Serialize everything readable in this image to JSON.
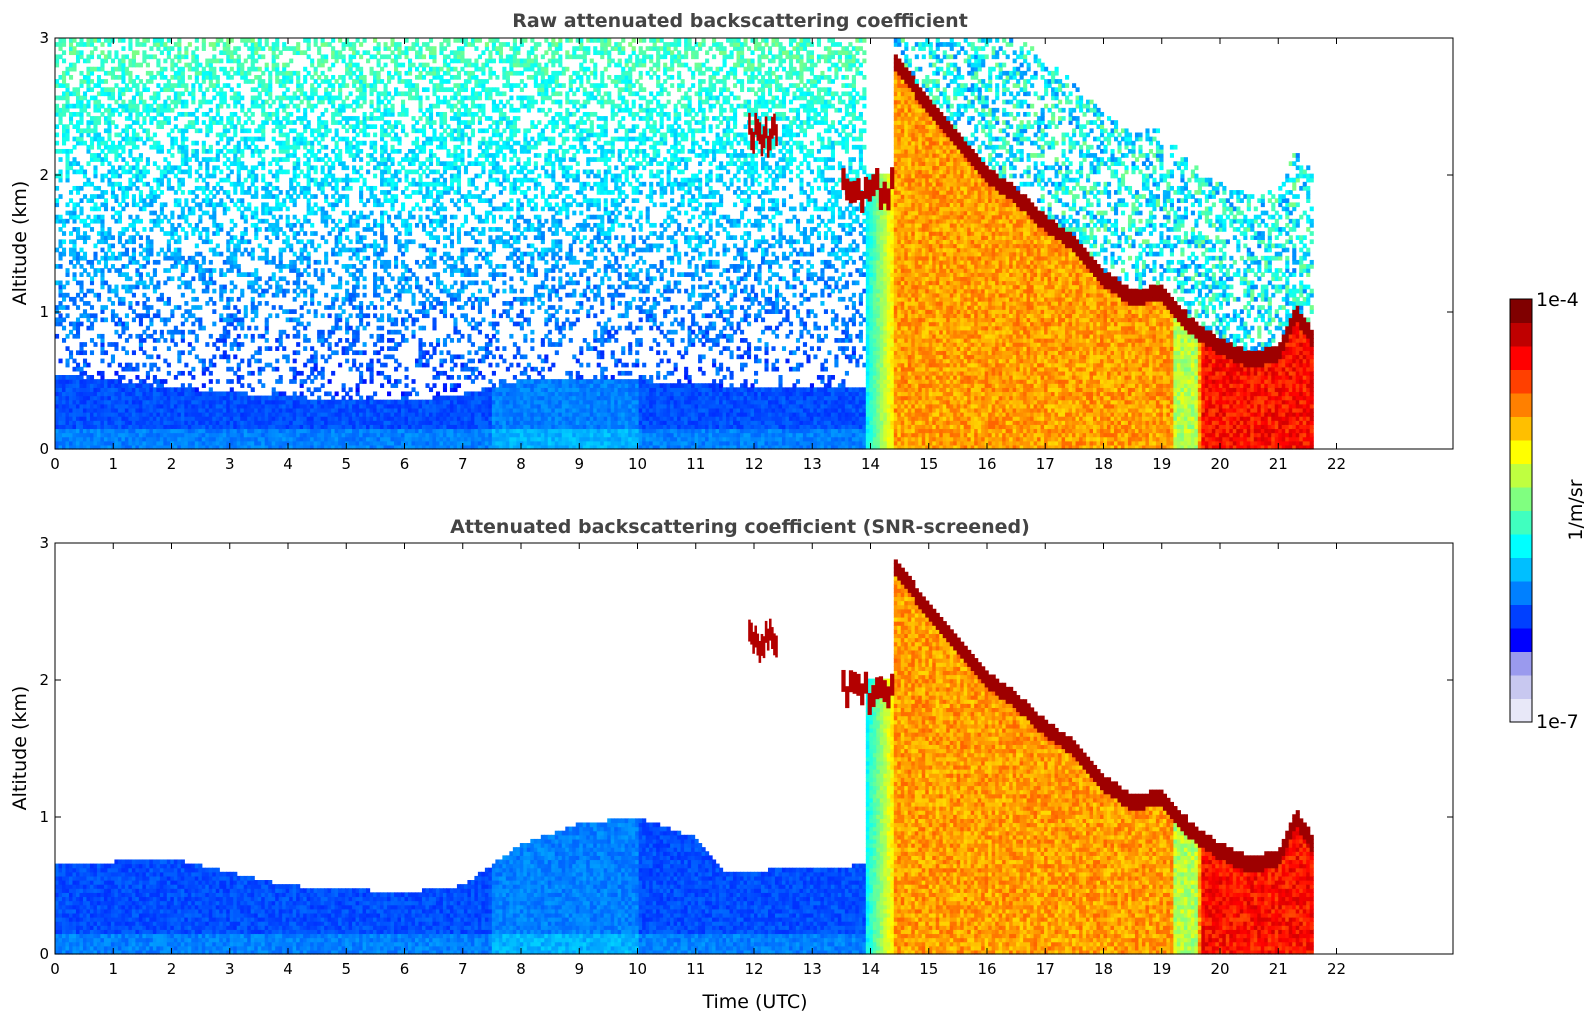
{
  "chart_data": [
    {
      "type": "heatmap",
      "title": "Raw attenuated backscattering coefficient",
      "ylabel": "Altitude (km)",
      "xlabel": "",
      "xlim": [
        0,
        24
      ],
      "ylim": [
        0,
        3
      ],
      "xticks": [
        "0",
        "1",
        "2",
        "3",
        "4",
        "5",
        "6",
        "7",
        "8",
        "9",
        "10",
        "11",
        "12",
        "13",
        "14",
        "15",
        "16",
        "17",
        "18",
        "19",
        "20",
        "21",
        "22"
      ],
      "yticks": [
        "0",
        "1",
        "2",
        "3"
      ],
      "data_end_time": 21.6,
      "screened": false,
      "features": {
        "boundary_layer_top_km": [
          [
            0,
            0.55
          ],
          [
            2,
            0.45
          ],
          [
            4,
            0.38
          ],
          [
            6,
            0.35
          ],
          [
            7,
            0.4
          ],
          [
            8,
            0.5
          ],
          [
            10,
            0.5
          ],
          [
            12,
            0.45
          ],
          [
            13.9,
            0.45
          ]
        ],
        "cloud_top_km": [
          [
            14.4,
            2.85
          ],
          [
            15,
            2.5
          ],
          [
            15.5,
            2.25
          ],
          [
            16,
            2.0
          ],
          [
            16.5,
            1.85
          ],
          [
            17,
            1.65
          ],
          [
            17.5,
            1.5
          ],
          [
            18,
            1.25
          ],
          [
            18.5,
            1.1
          ],
          [
            19,
            1.15
          ],
          [
            19.5,
            0.9
          ],
          [
            20,
            0.75
          ],
          [
            20.5,
            0.65
          ],
          [
            21,
            0.7
          ],
          [
            21.3,
            1.0
          ],
          [
            21.6,
            0.8
          ]
        ],
        "elevated_layers": [
          {
            "time": [
              11.9,
              12.4
            ],
            "altitude_km": [
              2.2,
              2.4
            ]
          },
          {
            "time": [
              13.5,
              14.4
            ],
            "altitude_km": [
              1.8,
              2.0
            ]
          }
        ]
      }
    },
    {
      "type": "heatmap",
      "title": "Attenuated backscattering coefficient (SNR-screened)",
      "ylabel": "Altitude (km)",
      "xlabel": "Time (UTC)",
      "xlim": [
        0,
        24
      ],
      "ylim": [
        0,
        3
      ],
      "xticks": [
        "0",
        "1",
        "2",
        "3",
        "4",
        "5",
        "6",
        "7",
        "8",
        "9",
        "10",
        "11",
        "12",
        "13",
        "14",
        "15",
        "16",
        "17",
        "18",
        "19",
        "20",
        "21",
        "22"
      ],
      "yticks": [
        "0",
        "1",
        "2",
        "3"
      ],
      "data_end_time": 21.6,
      "screened": true,
      "features": {
        "boundary_layer_top_km": [
          [
            0,
            0.65
          ],
          [
            2,
            0.7
          ],
          [
            3,
            0.6
          ],
          [
            4,
            0.5
          ],
          [
            6,
            0.45
          ],
          [
            7,
            0.5
          ],
          [
            8,
            0.8
          ],
          [
            9,
            0.95
          ],
          [
            10,
            1.0
          ],
          [
            11,
            0.85
          ],
          [
            11.5,
            0.6
          ],
          [
            13.9,
            0.65
          ]
        ],
        "cloud_top_km": [
          [
            14.4,
            2.85
          ],
          [
            15,
            2.5
          ],
          [
            15.5,
            2.25
          ],
          [
            16,
            2.0
          ],
          [
            16.5,
            1.85
          ],
          [
            17,
            1.65
          ],
          [
            17.5,
            1.5
          ],
          [
            18,
            1.25
          ],
          [
            18.5,
            1.1
          ],
          [
            19,
            1.15
          ],
          [
            19.5,
            0.9
          ],
          [
            20,
            0.75
          ],
          [
            20.5,
            0.65
          ],
          [
            21,
            0.7
          ],
          [
            21.3,
            1.0
          ],
          [
            21.6,
            0.8
          ]
        ],
        "elevated_layers": [
          {
            "time": [
              11.9,
              12.4
            ],
            "altitude_km": [
              2.2,
              2.4
            ]
          },
          {
            "time": [
              13.5,
              14.4
            ],
            "altitude_km": [
              1.8,
              2.0
            ]
          }
        ]
      }
    }
  ],
  "colorbar": {
    "label": "1/m/sr",
    "max_label": "1e-4",
    "min_label": "1e-7",
    "colors": [
      "#e8e8f8",
      "#c8c8f0",
      "#9a9aee",
      "#0000ff",
      "#0040ff",
      "#0080ff",
      "#00bfff",
      "#00ffff",
      "#40ffbf",
      "#80ff80",
      "#bfff40",
      "#ffff00",
      "#ffbf00",
      "#ff8000",
      "#ff4000",
      "#ff0000",
      "#bf0000",
      "#800000"
    ]
  }
}
